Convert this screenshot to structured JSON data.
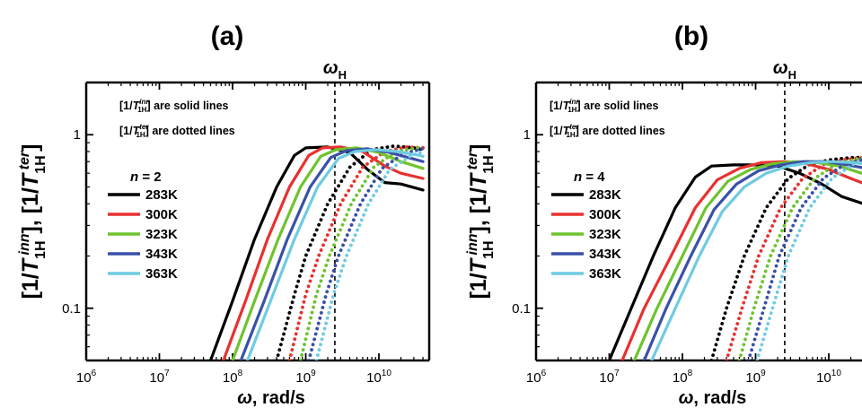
{
  "chart_data": [
    {
      "panel": "(a)",
      "type": "line",
      "x_scale": "log",
      "y_scale": "log",
      "xlim": [
        1000000,
        40000000000
      ],
      "ylim": [
        0.05,
        2
      ],
      "xlabel": "ω, rad/s",
      "ylabel": "[1/T1H^inn], [1/T1H^ter]",
      "x_ticks": [
        "10^6",
        "10^7",
        "10^8",
        "10^9",
        "10^10"
      ],
      "y_ticks": [
        "1",
        "0.1"
      ],
      "vline": {
        "x": 2500000000,
        "label": "ω_H"
      },
      "note_solid": "are solid lines",
      "note_dotted": "are dotted lines",
      "legend_title": "n = 2",
      "series": [
        {
          "name": "283K",
          "color": "#000000",
          "inner": [
            [
              50000000,
              0.05
            ],
            [
              100000000,
              0.11
            ],
            [
              200000000,
              0.25
            ],
            [
              400000000,
              0.5
            ],
            [
              700000000,
              0.76
            ],
            [
              1000000000,
              0.84
            ],
            [
              2000000000,
              0.85
            ],
            [
              4000000000,
              0.79
            ],
            [
              7000000000,
              0.63
            ],
            [
              12000000000,
              0.53
            ],
            [
              20000000000,
              0.52
            ],
            [
              40000000000,
              0.48
            ]
          ],
          "outer": [
            [
              400000000,
              0.05
            ],
            [
              700000000,
              0.12
            ],
            [
              1000000000,
              0.2
            ],
            [
              2000000000,
              0.4
            ],
            [
              4000000000,
              0.65
            ],
            [
              8000000000,
              0.82
            ],
            [
              16000000000,
              0.86
            ],
            [
              30000000000,
              0.84
            ],
            [
              40000000000,
              0.82
            ]
          ]
        },
        {
          "name": "300K",
          "color": "#e8312f",
          "inner": [
            [
              75000000,
              0.05
            ],
            [
              150000000,
              0.11
            ],
            [
              300000000,
              0.25
            ],
            [
              600000000,
              0.5
            ],
            [
              1100000000,
              0.76
            ],
            [
              1700000000,
              0.84
            ],
            [
              3000000000,
              0.85
            ],
            [
              6000000000,
              0.8
            ],
            [
              12000000000,
              0.66
            ],
            [
              20000000000,
              0.6
            ],
            [
              40000000000,
              0.56
            ]
          ],
          "outer": [
            [
              600000000,
              0.05
            ],
            [
              1000000000,
              0.12
            ],
            [
              1500000000,
              0.2
            ],
            [
              3000000000,
              0.4
            ],
            [
              6000000000,
              0.65
            ],
            [
              12000000000,
              0.8
            ],
            [
              24000000000,
              0.85
            ],
            [
              40000000000,
              0.84
            ]
          ]
        },
        {
          "name": "323K",
          "color": "#6fc32e",
          "inner": [
            [
              100000000,
              0.05
            ],
            [
              200000000,
              0.11
            ],
            [
              420000000,
              0.25
            ],
            [
              850000000,
              0.5
            ],
            [
              1600000000,
              0.75
            ],
            [
              2600000000,
              0.82
            ],
            [
              5000000000,
              0.84
            ],
            [
              10000000000,
              0.79
            ],
            [
              20000000000,
              0.7
            ],
            [
              40000000000,
              0.64
            ]
          ],
          "outer": [
            [
              850000000,
              0.05
            ],
            [
              1400000000,
              0.12
            ],
            [
              2100000000,
              0.2
            ],
            [
              4200000000,
              0.4
            ],
            [
              8500000000,
              0.65
            ],
            [
              17000000000,
              0.8
            ],
            [
              34000000000,
              0.84
            ],
            [
              40000000000,
              0.84
            ]
          ]
        },
        {
          "name": "343K",
          "color": "#3a50a8",
          "inner": [
            [
              130000000,
              0.05
            ],
            [
              270000000,
              0.11
            ],
            [
              560000000,
              0.25
            ],
            [
              1150000000,
              0.5
            ],
            [
              2200000000,
              0.74
            ],
            [
              3600000000,
              0.81
            ],
            [
              7000000000,
              0.83
            ],
            [
              14000000000,
              0.79
            ],
            [
              28000000000,
              0.73
            ],
            [
              40000000000,
              0.7
            ]
          ],
          "outer": [
            [
              1100000000,
              0.05
            ],
            [
              1900000000,
              0.12
            ],
            [
              2800000000,
              0.2
            ],
            [
              5600000000,
              0.4
            ],
            [
              11000000000,
              0.64
            ],
            [
              22000000000,
              0.78
            ],
            [
              40000000000,
              0.83
            ]
          ]
        },
        {
          "name": "363K",
          "color": "#6fcbe0",
          "inner": [
            [
              160000000,
              0.05
            ],
            [
              330000000,
              0.11
            ],
            [
              700000000,
              0.25
            ],
            [
              1450000000,
              0.5
            ],
            [
              2800000000,
              0.73
            ],
            [
              4700000000,
              0.8
            ],
            [
              9000000000,
              0.82
            ],
            [
              18000000000,
              0.8
            ],
            [
              36000000000,
              0.76
            ],
            [
              40000000000,
              0.75
            ]
          ],
          "outer": [
            [
              1400000000,
              0.05
            ],
            [
              2400000000,
              0.12
            ],
            [
              3600000000,
              0.2
            ],
            [
              7200000000,
              0.4
            ],
            [
              14000000000,
              0.63
            ],
            [
              28000000000,
              0.76
            ],
            [
              40000000000,
              0.8
            ]
          ]
        }
      ]
    },
    {
      "panel": "(b)",
      "type": "line",
      "x_scale": "log",
      "y_scale": "log",
      "xlim": [
        1000000,
        40000000000
      ],
      "ylim": [
        0.05,
        2
      ],
      "xlabel": "ω, rad/s",
      "ylabel": "[1/T1H^inn], [1/T1H^ter]",
      "x_ticks": [
        "10^6",
        "10^7",
        "10^8",
        "10^9",
        "10^10"
      ],
      "y_ticks": [
        "1",
        "0.1"
      ],
      "vline": {
        "x": 2500000000,
        "label": "ω_H"
      },
      "note_solid": "are solid lines",
      "note_dotted": "are dotted lines",
      "legend_title": "n = 4",
      "series": [
        {
          "name": "283K",
          "color": "#000000",
          "inner": [
            [
              10000000,
              0.05
            ],
            [
              20000000,
              0.1
            ],
            [
              40000000,
              0.2
            ],
            [
              80000000,
              0.38
            ],
            [
              150000000,
              0.57
            ],
            [
              250000000,
              0.66
            ],
            [
              500000000,
              0.67
            ],
            [
              1000000000,
              0.67
            ],
            [
              2000000000,
              0.66
            ],
            [
              4000000000,
              0.6
            ],
            [
              8000000000,
              0.52
            ],
            [
              15000000000,
              0.44
            ],
            [
              30000000000,
              0.4
            ],
            [
              40000000000,
              0.38
            ]
          ],
          "outer": [
            [
              250000000,
              0.05
            ],
            [
              400000000,
              0.1
            ],
            [
              700000000,
              0.2
            ],
            [
              1400000000,
              0.38
            ],
            [
              2800000000,
              0.56
            ],
            [
              5600000000,
              0.68
            ],
            [
              11000000000,
              0.72
            ],
            [
              22000000000,
              0.74
            ],
            [
              40000000000,
              0.74
            ]
          ]
        },
        {
          "name": "300K",
          "color": "#e8312f",
          "inner": [
            [
              15000000,
              0.05
            ],
            [
              30000000,
              0.1
            ],
            [
              70000000,
              0.2
            ],
            [
              150000000,
              0.38
            ],
            [
              300000000,
              0.55
            ],
            [
              600000000,
              0.64
            ],
            [
              1200000000,
              0.69
            ],
            [
              2500000000,
              0.7
            ],
            [
              5000000000,
              0.68
            ],
            [
              10000000000,
              0.63
            ],
            [
              20000000000,
              0.56
            ],
            [
              40000000000,
              0.5
            ]
          ],
          "outer": [
            [
              400000000,
              0.05
            ],
            [
              650000000,
              0.1
            ],
            [
              1100000000,
              0.2
            ],
            [
              2200000000,
              0.38
            ],
            [
              4400000000,
              0.56
            ],
            [
              8800000000,
              0.68
            ],
            [
              17000000000,
              0.72
            ],
            [
              40000000000,
              0.75
            ]
          ]
        },
        {
          "name": "323K",
          "color": "#6fc32e",
          "inner": [
            [
              22000000,
              0.05
            ],
            [
              45000000,
              0.1
            ],
            [
              100000000,
              0.2
            ],
            [
              210000000,
              0.38
            ],
            [
              420000000,
              0.54
            ],
            [
              850000000,
              0.63
            ],
            [
              1700000000,
              0.68
            ],
            [
              3400000000,
              0.7
            ],
            [
              7000000000,
              0.69
            ],
            [
              14000000000,
              0.66
            ],
            [
              28000000000,
              0.6
            ],
            [
              40000000000,
              0.58
            ]
          ],
          "outer": [
            [
              600000000,
              0.05
            ],
            [
              950000000,
              0.1
            ],
            [
              1600000000,
              0.2
            ],
            [
              3200000000,
              0.38
            ],
            [
              6400000000,
              0.56
            ],
            [
              13000000000,
              0.68
            ],
            [
              26000000000,
              0.73
            ],
            [
              40000000000,
              0.75
            ]
          ]
        },
        {
          "name": "343K",
          "color": "#3a50a8",
          "inner": [
            [
              30000000,
              0.05
            ],
            [
              60000000,
              0.1
            ],
            [
              130000000,
              0.2
            ],
            [
              270000000,
              0.37
            ],
            [
              550000000,
              0.52
            ],
            [
              1100000000,
              0.62
            ],
            [
              2200000000,
              0.67
            ],
            [
              4500000000,
              0.7
            ],
            [
              9000000000,
              0.7
            ],
            [
              18000000000,
              0.67
            ],
            [
              40000000000,
              0.63
            ]
          ],
          "outer": [
            [
              800000000,
              0.05
            ],
            [
              1300000000,
              0.1
            ],
            [
              2100000000,
              0.2
            ],
            [
              4200000000,
              0.38
            ],
            [
              8400000000,
              0.56
            ],
            [
              17000000000,
              0.68
            ],
            [
              34000000000,
              0.73
            ],
            [
              40000000000,
              0.74
            ]
          ]
        },
        {
          "name": "363K",
          "color": "#6fcbe0",
          "inner": [
            [
              38000000,
              0.05
            ],
            [
              80000000,
              0.1
            ],
            [
              170000000,
              0.2
            ],
            [
              350000000,
              0.36
            ],
            [
              700000000,
              0.5
            ],
            [
              1400000000,
              0.6
            ],
            [
              2800000000,
              0.66
            ],
            [
              5600000000,
              0.69
            ],
            [
              11000000000,
              0.7
            ],
            [
              22000000000,
              0.69
            ],
            [
              40000000000,
              0.67
            ]
          ],
          "outer": [
            [
              1050000000,
              0.05
            ],
            [
              1700000000,
              0.1
            ],
            [
              2800000000,
              0.2
            ],
            [
              5500000000,
              0.38
            ],
            [
              11000000000,
              0.56
            ],
            [
              22000000000,
              0.68
            ],
            [
              40000000000,
              0.73
            ]
          ]
        }
      ]
    }
  ]
}
